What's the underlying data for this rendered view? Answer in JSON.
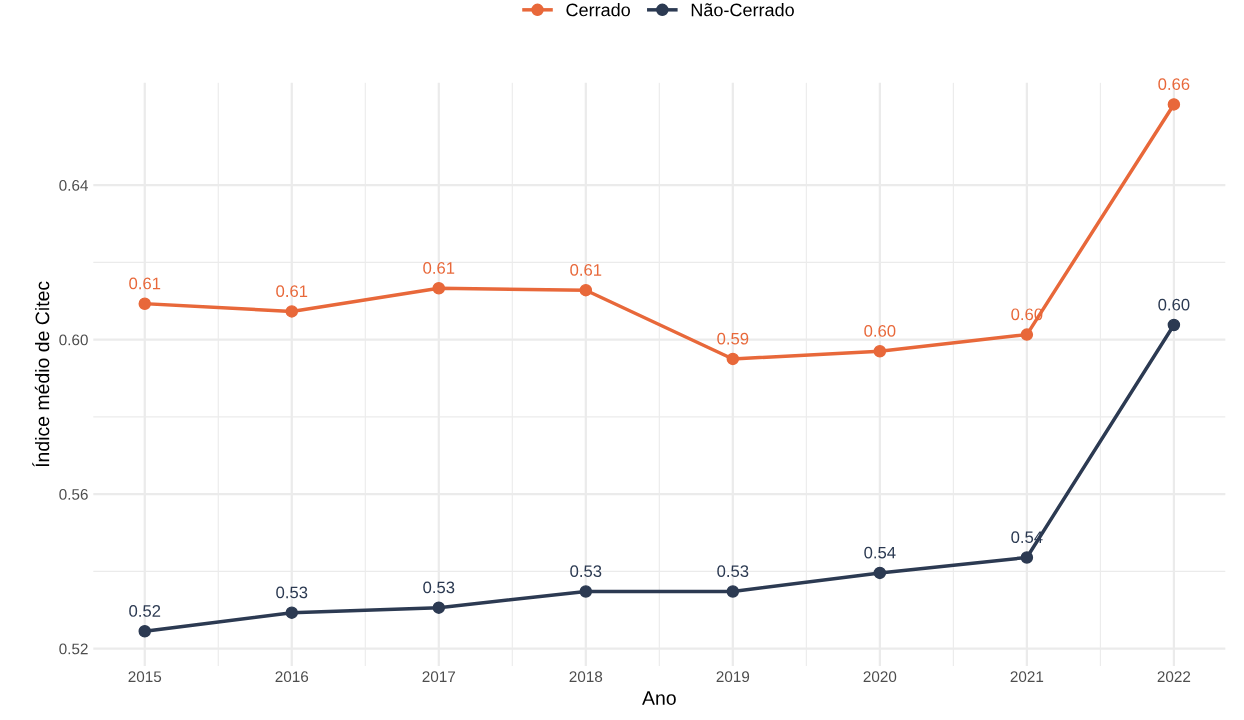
{
  "chart_data": {
    "type": "line",
    "xlabel": "Ano",
    "ylabel": "Índice médio de Citec",
    "x": [
      2015,
      2016,
      2017,
      2018,
      2019,
      2020,
      2021,
      2022
    ],
    "series": [
      {
        "name": "Cerrado",
        "color": "#e8683a",
        "values": [
          0.6093,
          0.6073,
          0.6133,
          0.6128,
          0.595,
          0.597,
          0.6013,
          0.6609
        ],
        "value_labels": [
          "0.61",
          "0.61",
          "0.61",
          "0.61",
          "0.59",
          "0.60",
          "0.60",
          "0.66"
        ]
      },
      {
        "name": "Não-Cerrado",
        "color": "#2c3a52",
        "values": [
          0.5245,
          0.5293,
          0.5306,
          0.5348,
          0.5348,
          0.5396,
          0.5436,
          0.6038
        ],
        "value_labels": [
          "0.52",
          "0.53",
          "0.53",
          "0.53",
          "0.53",
          "0.54",
          "0.54",
          "0.60"
        ]
      }
    ],
    "xlim": [
      2014.65,
      2022.35
    ],
    "ylim": [
      0.5155,
      0.6665
    ],
    "xticks": [
      2015,
      {
        "value": 2015.5,
        "label": null
      },
      2016,
      {
        "value": 2016.5,
        "label": null
      },
      2017,
      {
        "value": 2017.5,
        "label": null
      },
      2018,
      {
        "value": 2018.5,
        "label": null
      },
      2019,
      {
        "value": 2019.5,
        "label": null
      },
      2020,
      {
        "value": 2020.5,
        "label": null
      },
      2021,
      {
        "value": 2021.5,
        "label": null
      },
      2022
    ],
    "yticks": [
      {
        "value": 0.52,
        "label": "0.52"
      },
      {
        "value": 0.54,
        "label": null
      },
      {
        "value": 0.56,
        "label": "0.56"
      },
      {
        "value": 0.58,
        "label": null
      },
      {
        "value": 0.6,
        "label": "0.60"
      },
      {
        "value": 0.62,
        "label": null
      },
      {
        "value": 0.64,
        "label": "0.64"
      }
    ],
    "grid": true,
    "legend": "top",
    "marker": "circle",
    "line_style": "solid"
  }
}
